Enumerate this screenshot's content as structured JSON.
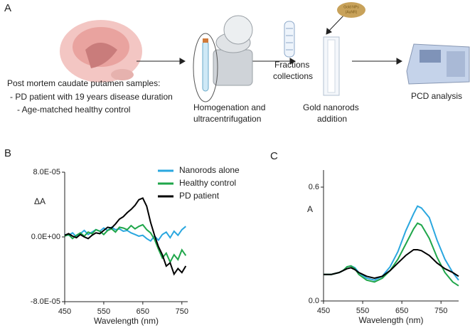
{
  "panel_labels": [
    "A",
    "B",
    "C"
  ],
  "workflow": {
    "sample": [
      "Post mortem caudate putamen samples:",
      "- PD patient with 19 years disease duration",
      "- Age-matched healthy control"
    ],
    "homogenation": [
      "Homogenation and",
      "ultracentrifugation"
    ],
    "fractions": [
      "Fractions",
      "collections"
    ],
    "gold_np": [
      "Gold NPs",
      "(AuNR)"
    ],
    "addition": [
      "Gold nanorods",
      "addition"
    ],
    "analysis": "PCD analysis"
  },
  "chart_data": [
    {
      "type": "line",
      "xlabel": "Wavelength (nm)",
      "ylabel": "ΔA",
      "xlim": [
        450,
        765
      ],
      "xticks": [
        450,
        550,
        650,
        750
      ],
      "ylim": [
        -8e-05,
        8e-05
      ],
      "yticks": [
        {
          "value": -8e-05,
          "label": "-8.0E-05"
        },
        {
          "value": 0,
          "label": "0.0E+00"
        },
        {
          "value": 8e-05,
          "label": "8.0E-05"
        }
      ],
      "legend": "upper right",
      "x": [
        450,
        460,
        470,
        480,
        490,
        500,
        510,
        520,
        530,
        540,
        550,
        560,
        570,
        580,
        590,
        600,
        610,
        620,
        630,
        640,
        650,
        660,
        670,
        680,
        690,
        700,
        710,
        720,
        730,
        740,
        750,
        760
      ],
      "series": [
        {
          "name": "Nanorods alone",
          "color": "#2aa7df",
          "values": [
            3e-06,
            2e-06,
            5e-06,
            0,
            4e-06,
            8e-06,
            3e-06,
            6e-06,
            9e-06,
            7e-06,
            1.1e-05,
            8e-06,
            1.2e-05,
            9e-06,
            1e-05,
            7e-06,
            8e-06,
            5e-06,
            3e-06,
            1e-06,
            2e-06,
            -2e-06,
            -5e-06,
            1e-06,
            -4e-06,
            3e-06,
            6e-06,
            -1e-06,
            7e-06,
            2e-06,
            9e-06,
            1.3e-05
          ]
        },
        {
          "name": "Healthy control",
          "color": "#1fa64a",
          "values": [
            1e-06,
            3e-06,
            -2e-06,
            2e-06,
            5e-06,
            1e-06,
            6e-06,
            4e-06,
            9e-06,
            7e-06,
            3e-06,
            8e-06,
            1e-05,
            6e-06,
            1.2e-05,
            1.1e-05,
            9e-06,
            1.4e-05,
            1e-05,
            1.3e-05,
            1.5e-05,
            9e-06,
            5e-06,
            -3e-06,
            -1.5e-05,
            -2.6e-05,
            -2e-05,
            -3.1e-05,
            -2.2e-05,
            -2.8e-05,
            -1.6e-05,
            -2.3e-05
          ]
        },
        {
          "name": "PD patient",
          "color": "#000000",
          "values": [
            2e-06,
            4e-06,
            1e-06,
            -1e-06,
            3e-06,
            0,
            -2e-06,
            2e-06,
            5e-06,
            4e-06,
            8e-06,
            1.2e-05,
            1.1e-05,
            1.6e-05,
            2.2e-05,
            2.5e-05,
            3e-05,
            3.4e-05,
            3.9e-05,
            4.6e-05,
            4.8e-05,
            3.8e-05,
            1.8e-05,
            2e-06,
            -1.2e-05,
            -2.2e-05,
            -3.6e-05,
            -3.2e-05,
            -4.6e-05,
            -3.9e-05,
            -4.4e-05,
            -3.6e-05
          ]
        }
      ]
    },
    {
      "type": "line",
      "xlabel": "Wavelength (nm)",
      "ylabel": "A",
      "xlim": [
        450,
        795
      ],
      "xticks": [
        450,
        550,
        650,
        750
      ],
      "ylim": [
        0,
        0.69
      ],
      "yticks": [
        {
          "value": 0,
          "label": "0.0"
        },
        0.6
      ],
      "x": [
        450,
        470,
        490,
        500,
        510,
        520,
        530,
        540,
        560,
        580,
        600,
        620,
        640,
        660,
        680,
        690,
        700,
        720,
        740,
        760,
        780,
        795
      ],
      "series": [
        {
          "color": "#2aa7df",
          "values": [
            0.14,
            0.14,
            0.15,
            0.16,
            0.18,
            0.185,
            0.175,
            0.15,
            0.12,
            0.11,
            0.13,
            0.18,
            0.26,
            0.37,
            0.46,
            0.5,
            0.49,
            0.44,
            0.32,
            0.22,
            0.15,
            0.11
          ]
        },
        {
          "color": "#1fa64a",
          "values": [
            0.14,
            0.14,
            0.15,
            0.16,
            0.18,
            0.185,
            0.17,
            0.14,
            0.11,
            0.1,
            0.12,
            0.16,
            0.22,
            0.3,
            0.38,
            0.41,
            0.4,
            0.33,
            0.23,
            0.15,
            0.1,
            0.08
          ]
        },
        {
          "color": "#000000",
          "values": [
            0.14,
            0.14,
            0.15,
            0.16,
            0.17,
            0.175,
            0.165,
            0.15,
            0.13,
            0.12,
            0.13,
            0.16,
            0.2,
            0.24,
            0.27,
            0.27,
            0.265,
            0.24,
            0.2,
            0.17,
            0.15,
            0.13
          ]
        }
      ]
    }
  ]
}
